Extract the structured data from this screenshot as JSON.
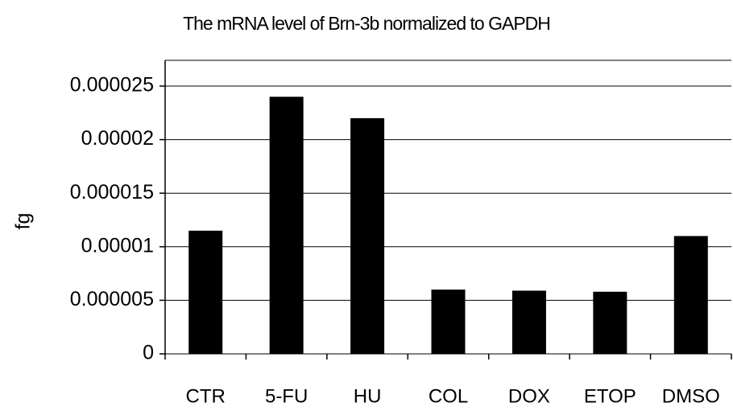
{
  "chart_data": {
    "type": "bar",
    "title": "The mRNA level of Brn-3b normalized to GAPDH",
    "y_label": "fg",
    "categories": [
      "CTR",
      "5-FU",
      "HU",
      "COL",
      "DOX",
      "ETOP",
      "DMSO"
    ],
    "values": [
      1.15e-05,
      2.4e-05,
      2.2e-05,
      6e-06,
      5.9e-06,
      5.8e-06,
      1.1e-05
    ],
    "color": "#000000",
    "ylim": [
      0,
      2.5e-05
    ],
    "yticks": [
      0,
      5e-06,
      1e-05,
      1.5e-05,
      2e-05,
      2.5e-05
    ],
    "grid": true
  }
}
